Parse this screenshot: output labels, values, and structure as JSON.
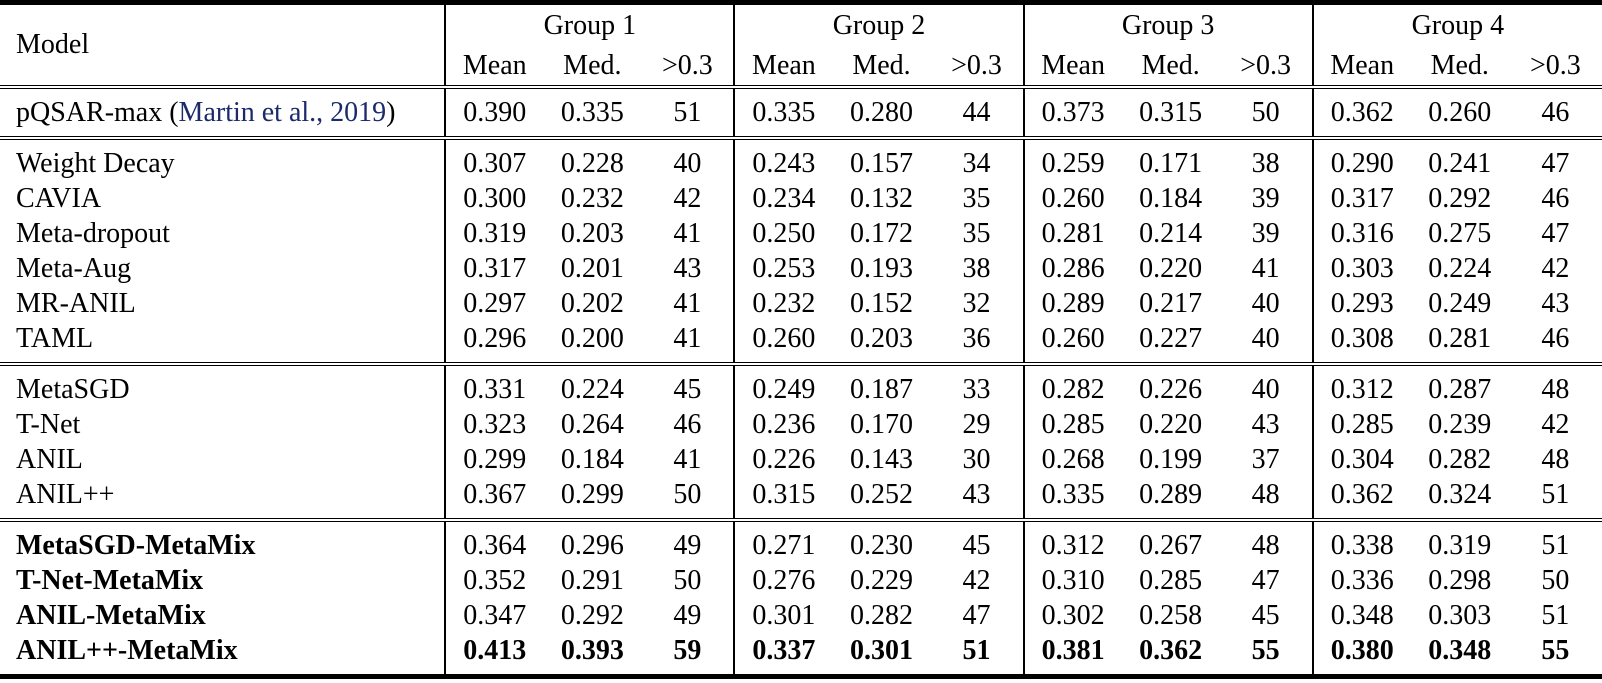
{
  "table": {
    "columns": {
      "model": "Model",
      "metrics": [
        "Mean",
        "Med.",
        ">0.3"
      ]
    },
    "groups": [
      "Group 1",
      "Group 2",
      "Group 3",
      "Group 4"
    ],
    "colors": {
      "citation": "#1b2a6b",
      "text": "#000000",
      "rule": "#000000"
    },
    "sections": [
      {
        "rows": [
          {
            "name_prefix": "pQSAR-max (",
            "citation": "Martin et al., 2019",
            "name_suffix": ")",
            "bold_name": false,
            "bold_values": false,
            "values": [
              "0.390",
              "0.335",
              "51",
              "0.335",
              "0.280",
              "44",
              "0.373",
              "0.315",
              "50",
              "0.362",
              "0.260",
              "46"
            ]
          }
        ]
      },
      {
        "rows": [
          {
            "name": "Weight Decay",
            "bold_name": false,
            "bold_values": false,
            "values": [
              "0.307",
              "0.228",
              "40",
              "0.243",
              "0.157",
              "34",
              "0.259",
              "0.171",
              "38",
              "0.290",
              "0.241",
              "47"
            ]
          },
          {
            "name": "CAVIA",
            "bold_name": false,
            "bold_values": false,
            "values": [
              "0.300",
              "0.232",
              "42",
              "0.234",
              "0.132",
              "35",
              "0.260",
              "0.184",
              "39",
              "0.317",
              "0.292",
              "46"
            ]
          },
          {
            "name": "Meta-dropout",
            "bold_name": false,
            "bold_values": false,
            "values": [
              "0.319",
              "0.203",
              "41",
              "0.250",
              "0.172",
              "35",
              "0.281",
              "0.214",
              "39",
              "0.316",
              "0.275",
              "47"
            ]
          },
          {
            "name": "Meta-Aug",
            "bold_name": false,
            "bold_values": false,
            "values": [
              "0.317",
              "0.201",
              "43",
              "0.253",
              "0.193",
              "38",
              "0.286",
              "0.220",
              "41",
              "0.303",
              "0.224",
              "42"
            ]
          },
          {
            "name": "MR-ANIL",
            "bold_name": false,
            "bold_values": false,
            "values": [
              "0.297",
              "0.202",
              "41",
              "0.232",
              "0.152",
              "32",
              "0.289",
              "0.217",
              "40",
              "0.293",
              "0.249",
              "43"
            ]
          },
          {
            "name": "TAML",
            "bold_name": false,
            "bold_values": false,
            "values": [
              "0.296",
              "0.200",
              "41",
              "0.260",
              "0.203",
              "36",
              "0.260",
              "0.227",
              "40",
              "0.308",
              "0.281",
              "46"
            ]
          }
        ]
      },
      {
        "rows": [
          {
            "name": "MetaSGD",
            "bold_name": false,
            "bold_values": false,
            "values": [
              "0.331",
              "0.224",
              "45",
              "0.249",
              "0.187",
              "33",
              "0.282",
              "0.226",
              "40",
              "0.312",
              "0.287",
              "48"
            ]
          },
          {
            "name": "T-Net",
            "bold_name": false,
            "bold_values": false,
            "values": [
              "0.323",
              "0.264",
              "46",
              "0.236",
              "0.170",
              "29",
              "0.285",
              "0.220",
              "43",
              "0.285",
              "0.239",
              "42"
            ]
          },
          {
            "name": "ANIL",
            "bold_name": false,
            "bold_values": false,
            "values": [
              "0.299",
              "0.184",
              "41",
              "0.226",
              "0.143",
              "30",
              "0.268",
              "0.199",
              "37",
              "0.304",
              "0.282",
              "48"
            ]
          },
          {
            "name": "ANIL++",
            "bold_name": false,
            "bold_values": false,
            "values": [
              "0.367",
              "0.299",
              "50",
              "0.315",
              "0.252",
              "43",
              "0.335",
              "0.289",
              "48",
              "0.362",
              "0.324",
              "51"
            ]
          }
        ]
      },
      {
        "rows": [
          {
            "name": "MetaSGD-MetaMix",
            "bold_name": true,
            "bold_values": false,
            "values": [
              "0.364",
              "0.296",
              "49",
              "0.271",
              "0.230",
              "45",
              "0.312",
              "0.267",
              "48",
              "0.338",
              "0.319",
              "51"
            ]
          },
          {
            "name": "T-Net-MetaMix",
            "bold_name": true,
            "bold_values": false,
            "values": [
              "0.352",
              "0.291",
              "50",
              "0.276",
              "0.229",
              "42",
              "0.310",
              "0.285",
              "47",
              "0.336",
              "0.298",
              "50"
            ]
          },
          {
            "name": "ANIL-MetaMix",
            "bold_name": true,
            "bold_values": false,
            "values": [
              "0.347",
              "0.292",
              "49",
              "0.301",
              "0.282",
              "47",
              "0.302",
              "0.258",
              "45",
              "0.348",
              "0.303",
              "51"
            ]
          },
          {
            "name": "ANIL++-MetaMix",
            "bold_name": true,
            "bold_values": true,
            "values": [
              "0.413",
              "0.393",
              "59",
              "0.337",
              "0.301",
              "51",
              "0.381",
              "0.362",
              "55",
              "0.380",
              "0.348",
              "55"
            ]
          }
        ]
      }
    ]
  }
}
